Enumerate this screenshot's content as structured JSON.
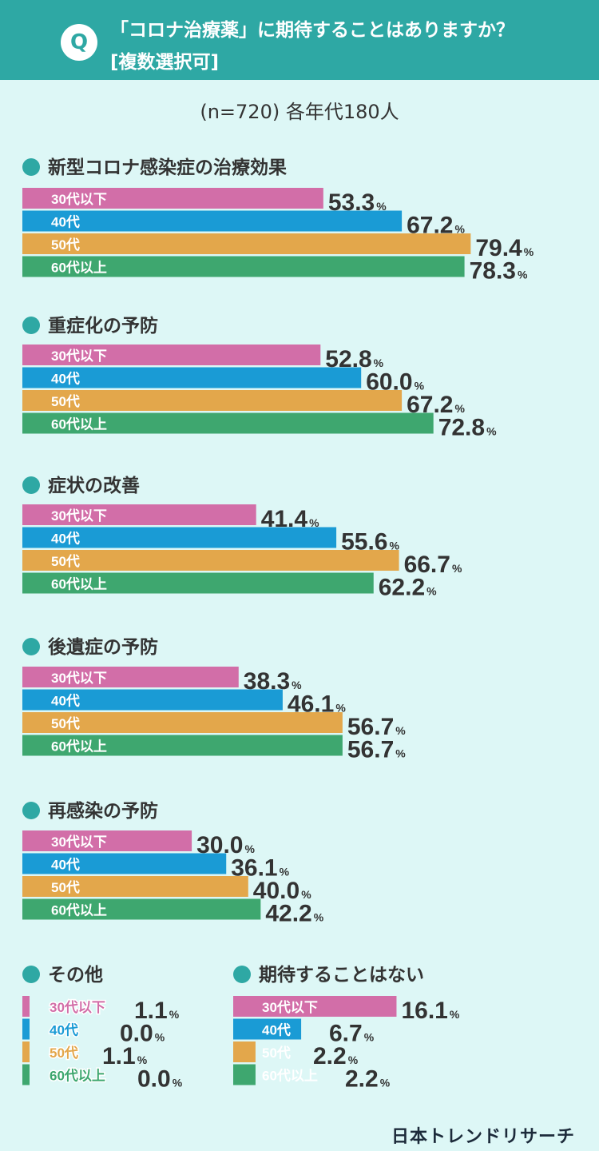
{
  "header": {
    "q_badge": "Q",
    "question": "「コロナ治療薬」に期待することはありますか？",
    "note": "[複数選択可]"
  },
  "sample": "(n=720) 各年代180人",
  "brand": "日本トレンドリサーチ",
  "colors": {
    "30s": "#d26ea8",
    "40s": "#1a9bd5",
    "50s": "#e3a74b",
    "60s": "#3ea76f",
    "accent": "#2ea8a4",
    "background": "#ddf7f6"
  },
  "chart_data": {
    "type": "bar",
    "orientation": "horizontal",
    "unit": "%",
    "groups": [
      "30代以下",
      "40代",
      "50代",
      "60代以上"
    ],
    "questions": [
      {
        "label": "新型コロナ感染症の治療効果",
        "values": [
          53.3,
          67.2,
          79.4,
          78.3
        ]
      },
      {
        "label": "重症化の予防",
        "values": [
          52.8,
          60.0,
          67.2,
          72.8
        ]
      },
      {
        "label": "症状の改善",
        "values": [
          41.4,
          55.6,
          66.7,
          62.2
        ]
      },
      {
        "label": "後遺症の予防",
        "values": [
          38.3,
          46.1,
          56.7,
          56.7
        ]
      },
      {
        "label": "再感染の予防",
        "values": [
          30.0,
          36.1,
          40.0,
          42.2
        ]
      },
      {
        "label": "その他",
        "values": [
          1.1,
          0.0,
          1.1,
          0.0
        ]
      },
      {
        "label": "期待することはない",
        "values": [
          16.1,
          6.7,
          2.2,
          2.2
        ]
      }
    ]
  }
}
